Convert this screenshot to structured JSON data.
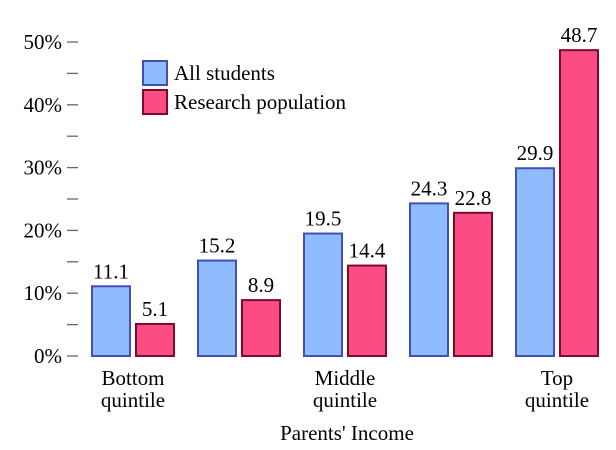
{
  "chart_data": {
    "type": "bar",
    "title": "",
    "xlabel": "Parents' Income",
    "ylabel": "",
    "ylim": [
      0,
      50
    ],
    "yticks": [
      0,
      10,
      20,
      30,
      40,
      50
    ],
    "ytick_labels": [
      "0%",
      "10%",
      "20%",
      "30%",
      "40%",
      "50%"
    ],
    "minor_ticks": true,
    "grid": false,
    "legend_position": "top-left",
    "categories": [
      "Bottom quintile",
      "",
      "Middle quintile",
      "",
      "Top quintile"
    ],
    "category_label_lines": [
      [
        "Bottom",
        "quintile"
      ],
      [],
      [
        "Middle",
        "quintile"
      ],
      [],
      [
        "Top",
        "quintile"
      ]
    ],
    "series": [
      {
        "name": "All students",
        "values": [
          11.1,
          15.2,
          19.5,
          24.3,
          29.9
        ],
        "color": "#8ebcfc",
        "stroke": "#4050b8"
      },
      {
        "name": "Research population",
        "values": [
          5.1,
          8.9,
          14.4,
          22.8,
          48.7
        ],
        "color": "#fc4c84",
        "stroke": "#7c0a2a"
      }
    ],
    "value_labels": [
      [
        "11.1",
        "15.2",
        "19.5",
        "24.3",
        "29.9"
      ],
      [
        "5.1",
        "8.9",
        "14.4",
        "22.8",
        "48.7"
      ]
    ]
  }
}
